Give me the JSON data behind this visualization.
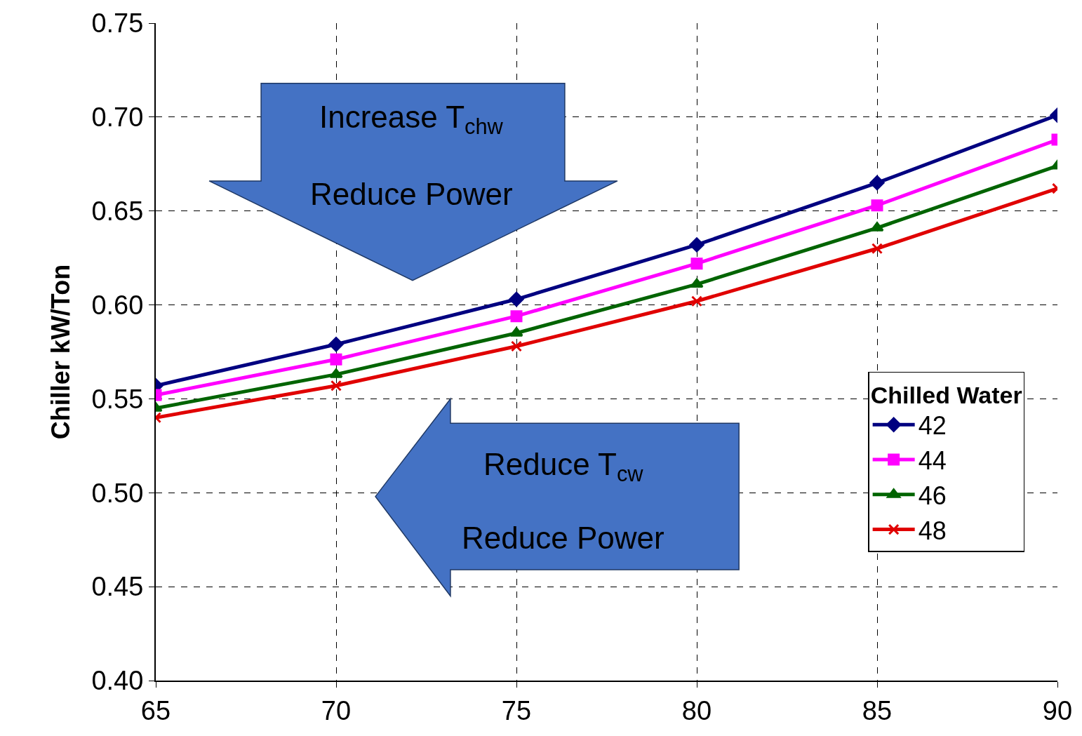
{
  "chart_data": {
    "type": "line",
    "ylabel": "Chiller kW/Ton",
    "legend_title": "Chilled Water",
    "x": [
      65,
      70,
      75,
      80,
      85,
      90
    ],
    "series": [
      {
        "name": "42",
        "color": "#000080",
        "marker": "diamond",
        "values": [
          0.557,
          0.579,
          0.603,
          0.632,
          0.665,
          0.701
        ]
      },
      {
        "name": "44",
        "color": "#ff00ff",
        "marker": "square",
        "values": [
          0.552,
          0.571,
          0.594,
          0.622,
          0.653,
          0.688
        ]
      },
      {
        "name": "46",
        "color": "#006400",
        "marker": "triangle",
        "values": [
          0.545,
          0.563,
          0.585,
          0.611,
          0.641,
          0.674
        ]
      },
      {
        "name": "48",
        "color": "#e00000",
        "marker": "cross",
        "values": [
          0.54,
          0.557,
          0.578,
          0.602,
          0.63,
          0.662
        ]
      }
    ],
    "xlim": [
      65,
      90
    ],
    "xticks": [
      65,
      70,
      75,
      80,
      85,
      90
    ],
    "ylim": [
      0.4,
      0.75
    ],
    "yticks": [
      {
        "value": 0.4,
        "label": "0.40"
      },
      {
        "value": 0.45,
        "label": "0.45"
      },
      {
        "value": 0.5,
        "label": "0.50"
      },
      {
        "value": 0.55,
        "label": "0.55"
      },
      {
        "value": 0.6,
        "label": "0.60"
      },
      {
        "value": 0.65,
        "label": "0.65"
      },
      {
        "value": 0.7,
        "label": "0.70"
      },
      {
        "value": 0.75,
        "label": "0.75"
      }
    ],
    "grid": true,
    "legend": "right",
    "line_style": "solid",
    "annotations": [
      "Increase T$_{chw}$",
      "Reduce Power",
      "Reduce T$_{cw}$",
      "Reduce Power"
    ]
  }
}
